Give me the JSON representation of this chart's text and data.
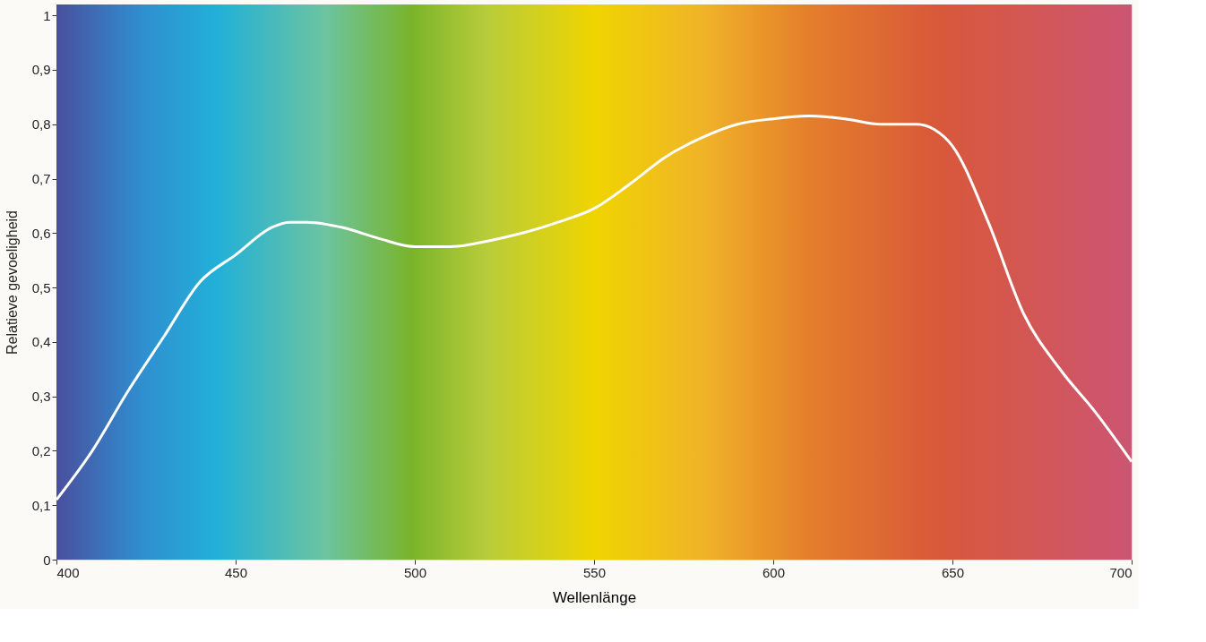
{
  "chart_data": {
    "type": "line",
    "xlabel": "Wellenlänge",
    "ylabel": "Relatieve gevoeligheid",
    "x": [
      400,
      410,
      420,
      430,
      440,
      450,
      460,
      465,
      470,
      480,
      490,
      500,
      510,
      520,
      530,
      540,
      550,
      560,
      570,
      580,
      590,
      600,
      610,
      620,
      630,
      640,
      645,
      650,
      660,
      670,
      680,
      690,
      700
    ],
    "series": [
      {
        "color": "#ffffff",
        "values": [
          0.11,
          0.2,
          0.31,
          0.41,
          0.51,
          0.56,
          0.61,
          0.62,
          0.62,
          0.61,
          0.59,
          0.575,
          0.575,
          0.585,
          0.6,
          0.62,
          0.645,
          0.69,
          0.74,
          0.775,
          0.8,
          0.81,
          0.815,
          0.81,
          0.8,
          0.8,
          0.79,
          0.76,
          0.62,
          0.45,
          0.35,
          0.27,
          0.18
        ]
      }
    ],
    "xlim": [
      400,
      700
    ],
    "xticks": [
      400,
      450,
      500,
      550,
      600,
      650,
      700
    ],
    "ylim": [
      0,
      1.02
    ],
    "yticks": [
      0,
      {
        "value": 0.1,
        "label": "0,1"
      },
      {
        "value": 0.2,
        "label": "0,2"
      },
      {
        "value": 0.3,
        "label": "0,3"
      },
      {
        "value": 0.4,
        "label": "0,4"
      },
      {
        "value": 0.5,
        "label": "0,5"
      },
      {
        "value": 0.6,
        "label": "0,6"
      },
      {
        "value": 0.7,
        "label": "0,7"
      },
      {
        "value": 0.8,
        "label": "0,8"
      },
      {
        "value": 0.9,
        "label": "0,9"
      },
      1
    ],
    "marker": "none",
    "line_style": "solid"
  }
}
